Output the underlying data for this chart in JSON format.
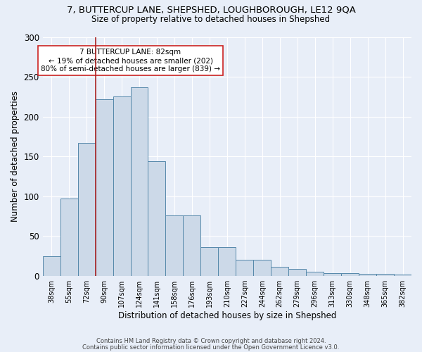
{
  "title1": "7, BUTTERCUP LANE, SHEPSHED, LOUGHBOROUGH, LE12 9QA",
  "title2": "Size of property relative to detached houses in Shepshed",
  "xlabel": "Distribution of detached houses by size in Shepshed",
  "ylabel": "Number of detached properties",
  "categories": [
    "38sqm",
    "55sqm",
    "72sqm",
    "90sqm",
    "107sqm",
    "124sqm",
    "141sqm",
    "158sqm",
    "176sqm",
    "193sqm",
    "210sqm",
    "227sqm",
    "244sqm",
    "262sqm",
    "279sqm",
    "296sqm",
    "313sqm",
    "330sqm",
    "348sqm",
    "365sqm",
    "382sqm"
  ],
  "values": [
    25,
    97,
    167,
    222,
    225,
    237,
    144,
    76,
    76,
    36,
    36,
    20,
    20,
    12,
    9,
    5,
    4,
    4,
    3,
    3,
    2
  ],
  "bar_color": "#ccd9e8",
  "bar_edge_color": "#5588aa",
  "bg_color": "#e8eef8",
  "grid_color": "#ffffff",
  "vline_x_idx": 2.5,
  "vline_color": "#aa2222",
  "annotation_text": "7 BUTTERCUP LANE: 82sqm\n← 19% of detached houses are smaller (202)\n80% of semi-detached houses are larger (839) →",
  "annotation_box_color": "#ffffff",
  "annotation_box_edge": "#cc2222",
  "footer1": "Contains HM Land Registry data © Crown copyright and database right 2024.",
  "footer2": "Contains public sector information licensed under the Open Government Licence v3.0.",
  "ylim": [
    0,
    300
  ],
  "yticks": [
    0,
    50,
    100,
    150,
    200,
    250,
    300
  ]
}
